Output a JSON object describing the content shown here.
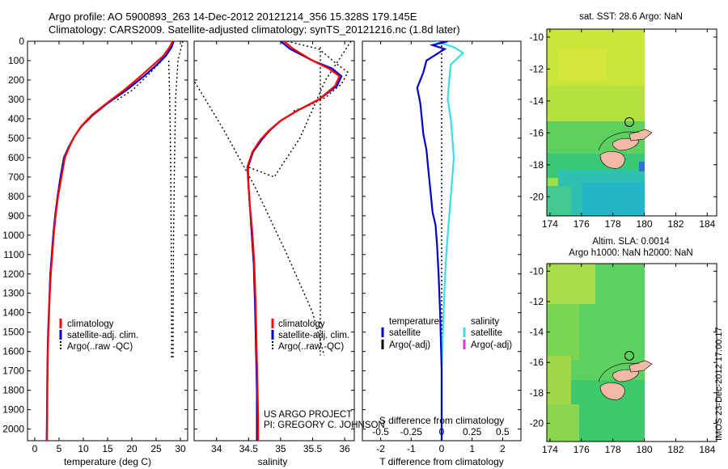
{
  "header": {
    "line1": "Argo profile: AO 5900893_263 14-Dec-2012 20121214_356 15.328S 179.145E",
    "line2": "Climatology: CARS2009. Satellite-adjusted climatology: synTS_20121216.nc (1.8d later)"
  },
  "credit": {
    "line1": "US ARGO PROJECT",
    "line2": "PI: GREGORY C. JOHNSON"
  },
  "side_stamp": "IMOS 23-Dec-2012 17:00:17",
  "colors": {
    "climatology": "#ff0000",
    "satellite": "#0000cc",
    "argo": "#000000",
    "salinity_satellite": "#33e0e8",
    "salinity_argo_adj": "#e030e0",
    "land": "#f2b9a7"
  },
  "chart_data": [
    {
      "type": "line",
      "id": "temperature",
      "xlabel": "temperature (deg C)",
      "xlim": [
        -1.5,
        31.5
      ],
      "xticks": [
        0,
        5,
        10,
        15,
        20,
        25,
        30
      ],
      "ylim": [
        2060,
        0
      ],
      "yticks": [
        0,
        100,
        200,
        300,
        400,
        500,
        600,
        700,
        800,
        900,
        1000,
        1100,
        1200,
        1300,
        1400,
        1500,
        1600,
        1700,
        1800,
        1900,
        2000
      ],
      "legend": [
        "climatology",
        "satellite-adj. clim.",
        "Argo(..raw -QC)"
      ],
      "series": [
        {
          "name": "climatology",
          "color": "#ff0000",
          "x": [
            28.4,
            27.8,
            26.5,
            24.5,
            21.8,
            18.5,
            14.8,
            11.8,
            9.5,
            8.2,
            7.2,
            6.2,
            5.5,
            4.8,
            4.3,
            3.9,
            3.6,
            3.3,
            3.1,
            2.95,
            2.8,
            2.7,
            2.6,
            2.55,
            2.5
          ],
          "y": [
            0,
            30,
            75,
            120,
            180,
            250,
            320,
            380,
            440,
            490,
            540,
            600,
            700,
            800,
            900,
            1000,
            1100,
            1200,
            1300,
            1400,
            1500,
            1600,
            1800,
            1950,
            2060
          ]
        },
        {
          "name": "satellite-adj. clim.",
          "color": "#0000cc",
          "x": [
            28.6,
            28.2,
            27.0,
            25.2,
            22.5,
            19.0,
            15.0,
            12.0,
            9.6,
            8.2,
            7.1,
            6.0,
            5.3,
            4.7,
            4.2,
            3.8,
            3.5,
            3.2,
            3.05,
            2.9,
            2.75,
            2.65,
            2.55,
            2.5,
            2.45
          ],
          "y": [
            0,
            30,
            75,
            120,
            180,
            250,
            320,
            380,
            440,
            490,
            540,
            600,
            700,
            800,
            900,
            1000,
            1100,
            1200,
            1300,
            1400,
            1500,
            1600,
            1800,
            1950,
            2060
          ]
        },
        {
          "name": "Argo(..raw -QC)",
          "color": "#000000",
          "dash": true,
          "x": [
            28.5,
            28.2,
            27.2,
            25.8,
            23.5,
            20.2,
            16.5
          ],
          "y": [
            0,
            30,
            70,
            110,
            170,
            250,
            310
          ]
        },
        {
          "name": "Argo raw upper",
          "color": "#000000",
          "dash": true,
          "x": [
            30.5,
            30.3,
            29.5,
            29.0,
            28.8,
            28.6,
            28.5,
            28.5
          ],
          "y": [
            0,
            20,
            100,
            300,
            600,
            1000,
            1400,
            1640
          ]
        },
        {
          "name": "Argo raw lower",
          "color": "#000000",
          "dash": true,
          "x": [
            27.6,
            27.8,
            28.0,
            28.1,
            28.2,
            28.2
          ],
          "y": [
            100,
            300,
            600,
            1000,
            1400,
            1640
          ]
        }
      ]
    },
    {
      "type": "line",
      "id": "salinity",
      "xlabel": "salinity",
      "xlim": [
        33.65,
        36.15
      ],
      "xticks": [
        34,
        34.5,
        35,
        35.5,
        36
      ],
      "ylim": [
        2060,
        0
      ],
      "legend": [
        "climatology",
        "satellite-adj. clim.",
        "Argo(..raw -QC)"
      ],
      "series": [
        {
          "name": "climatology",
          "color": "#ff0000",
          "x": [
            35.05,
            35.2,
            35.5,
            35.75,
            35.92,
            35.85,
            35.6,
            35.25,
            35.0,
            34.82,
            34.68,
            34.56,
            34.48,
            34.5,
            34.52,
            34.55,
            34.57,
            34.59,
            34.6,
            34.61,
            34.62,
            34.63,
            34.64,
            34.65,
            34.65
          ],
          "y": [
            0,
            40,
            100,
            140,
            180,
            230,
            300,
            360,
            410,
            460,
            510,
            570,
            650,
            750,
            850,
            950,
            1050,
            1150,
            1250,
            1350,
            1500,
            1650,
            1800,
            1950,
            2060
          ]
        },
        {
          "name": "satellite-adj. clim.",
          "color": "#0000cc",
          "x": [
            35.0,
            35.15,
            35.5,
            35.8,
            35.95,
            35.88,
            35.6,
            35.25,
            35.0,
            34.83,
            34.7,
            34.57,
            34.49,
            34.5,
            34.52,
            34.54,
            34.56,
            34.58,
            34.59,
            34.6,
            34.61,
            34.62,
            34.63,
            34.63,
            34.63
          ],
          "y": [
            0,
            40,
            100,
            140,
            180,
            230,
            300,
            360,
            410,
            460,
            510,
            570,
            650,
            750,
            850,
            950,
            1050,
            1150,
            1250,
            1350,
            1500,
            1650,
            1800,
            1950,
            2060
          ]
        },
        {
          "name": "Argo(..raw -QC)",
          "color": "#000000",
          "dash": true,
          "x": [
            35.1,
            35.6,
            35.85,
            36.05,
            35.95,
            35.7,
            35.45,
            35.2
          ],
          "y": [
            0,
            40,
            110,
            160,
            220,
            290,
            330,
            360
          ]
        },
        {
          "name": "Argo raw diagonal",
          "color": "#000000",
          "dash": true,
          "x": [
            36.1,
            35.7,
            35.3,
            34.9,
            34.5
          ],
          "y": [
            0,
            200,
            500,
            700,
            650
          ]
        },
        {
          "name": "Argo raw fan",
          "color": "#000000",
          "dash": true,
          "x": [
            33.66,
            34.1,
            34.6,
            35.1,
            35.5,
            35.68
          ],
          "y": [
            210,
            450,
            750,
            1100,
            1400,
            1620
          ]
        },
        {
          "name": "Argo raw upper",
          "color": "#000000",
          "dash": true,
          "x": [
            35.62,
            35.62,
            35.62,
            35.62
          ],
          "y": [
            30,
            500,
            1100,
            1620
          ]
        }
      ]
    },
    {
      "type": "line",
      "id": "difference",
      "xlabel_S": "S difference from climatology",
      "xlabel_T": "T difference from climatology",
      "xlim": [
        -2.6,
        2.6
      ],
      "xticks_T": [
        "-2",
        "-1",
        "0",
        "1",
        "2"
      ],
      "xticks_T_values": [
        -2,
        -1,
        0,
        1,
        2
      ],
      "xticks_S": [
        "-0.5",
        "-0.25",
        "0",
        "0.25",
        "0.5"
      ],
      "xticks_S_values": [
        -2,
        -1,
        0,
        1,
        2
      ],
      "ylim": [
        2060,
        0
      ],
      "legend_temperature": {
        "title": "temperature",
        "items": [
          "satellite",
          "Argo(-adj)"
        ]
      },
      "legend_salinity": {
        "title": "salinity",
        "items": [
          "satellite",
          "Argo(-adj)"
        ]
      },
      "series": [
        {
          "name": "temperature satellite",
          "color": "#0000cc",
          "x": [
            0.2,
            -0.3,
            0.1,
            -0.5,
            -0.6,
            -0.8,
            -0.7,
            -0.65,
            -0.6,
            -0.5,
            -0.45,
            -0.4,
            -0.35,
            -0.3,
            -0.2,
            -0.15,
            -0.1,
            -0.05,
            0.0,
            0.0
          ],
          "y": [
            0,
            20,
            40,
            100,
            160,
            240,
            320,
            400,
            480,
            560,
            640,
            720,
            800,
            880,
            950,
            1050,
            1200,
            1400,
            1700,
            2060
          ]
        },
        {
          "name": "salinity satellite",
          "color": "#33e0e8",
          "x": [
            -0.2,
            0.4,
            0.7,
            0.3,
            0.25,
            0.2,
            0.3,
            0.35,
            0.4,
            0.35,
            0.3,
            0.25,
            0.2,
            0.15,
            0.1,
            0.05,
            0.0,
            0.0
          ],
          "y": [
            0,
            30,
            60,
            120,
            200,
            300,
            400,
            500,
            600,
            700,
            800,
            900,
            1000,
            1100,
            1250,
            1450,
            1700,
            2060
          ]
        },
        {
          "name": "zero line",
          "color": "#000000",
          "dash": true,
          "x": [
            0,
            0
          ],
          "y": [
            0,
            2060
          ]
        }
      ]
    },
    {
      "type": "heatmap",
      "id": "sst_map",
      "title": "sat. SST: 28.6  Argo: NaN",
      "xticks": [
        174,
        176,
        178,
        180,
        182,
        184
      ],
      "yticks": [
        -10,
        -12,
        -14,
        -16,
        -18,
        -20
      ],
      "xlim": [
        173.8,
        184.6
      ],
      "ylim": [
        -21.2,
        -9.5
      ],
      "argo_position": [
        179.1,
        -15.3
      ]
    },
    {
      "type": "heatmap",
      "id": "sla_map",
      "title_line1": "Altim. SLA: 0.0014",
      "title_line2": "Argo h1000: NaN  h2000: NaN",
      "xticks": [
        174,
        176,
        178,
        180,
        182,
        184
      ],
      "yticks": [
        -10,
        -12,
        -14,
        -16,
        -18,
        -20
      ],
      "xlim": [
        173.8,
        184.6
      ],
      "ylim": [
        -21.2,
        -9.5
      ],
      "argo_position": [
        179.1,
        -15.3
      ]
    }
  ]
}
